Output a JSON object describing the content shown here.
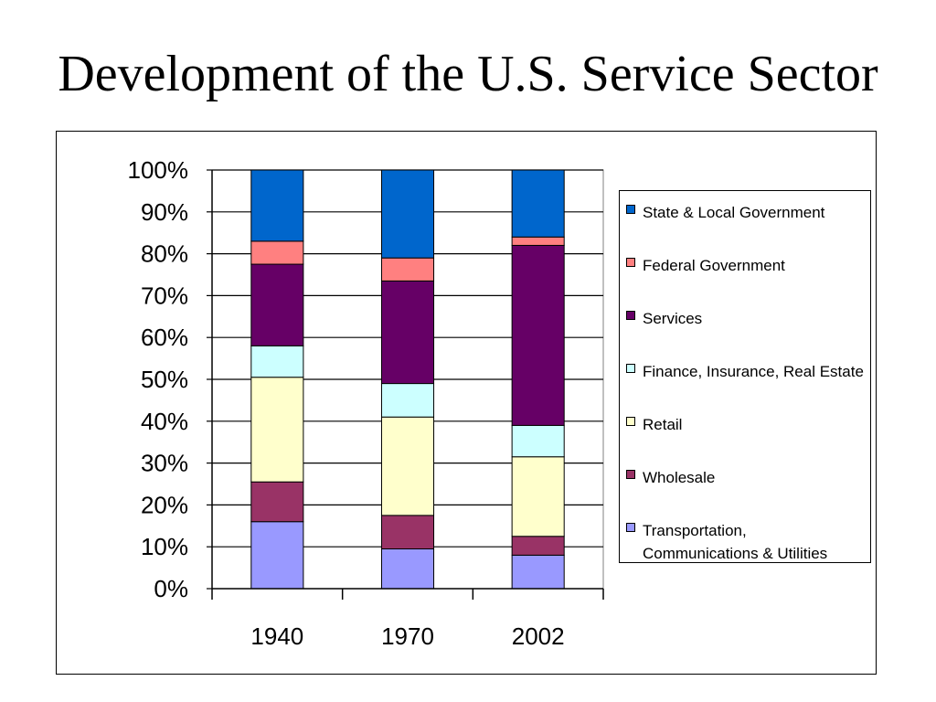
{
  "title": "Development of the U.S. Service Sector",
  "chart_data": {
    "type": "bar",
    "stacked": true,
    "percent_stacked": true,
    "categories": [
      "1940",
      "1970",
      "2002"
    ],
    "y_tick_labels": [
      "0%",
      "10%",
      "20%",
      "30%",
      "40%",
      "50%",
      "60%",
      "70%",
      "80%",
      "90%",
      "100%"
    ],
    "ylim": [
      0,
      100
    ],
    "grid": true,
    "legend_position": "right",
    "series": [
      {
        "name": "Transportation, Communications & Utilities",
        "color": "#9999ff",
        "values": [
          16,
          9.5,
          8
        ]
      },
      {
        "name": "Wholesale",
        "color": "#993366",
        "values": [
          9.5,
          8,
          4.5
        ]
      },
      {
        "name": "Retail",
        "color": "#ffffcc",
        "values": [
          25,
          23.5,
          19
        ]
      },
      {
        "name": "Finance, Insurance, Real Estate",
        "color": "#ccffff",
        "values": [
          7.5,
          8,
          7.5
        ]
      },
      {
        "name": "Services",
        "color": "#660066",
        "values": [
          19.5,
          24.5,
          43
        ]
      },
      {
        "name": "Federal Government",
        "color": "#ff8080",
        "values": [
          5.5,
          5.5,
          2
        ]
      },
      {
        "name": "State & Local Government",
        "color": "#0066cc",
        "values": [
          17,
          21,
          16
        ]
      }
    ]
  }
}
